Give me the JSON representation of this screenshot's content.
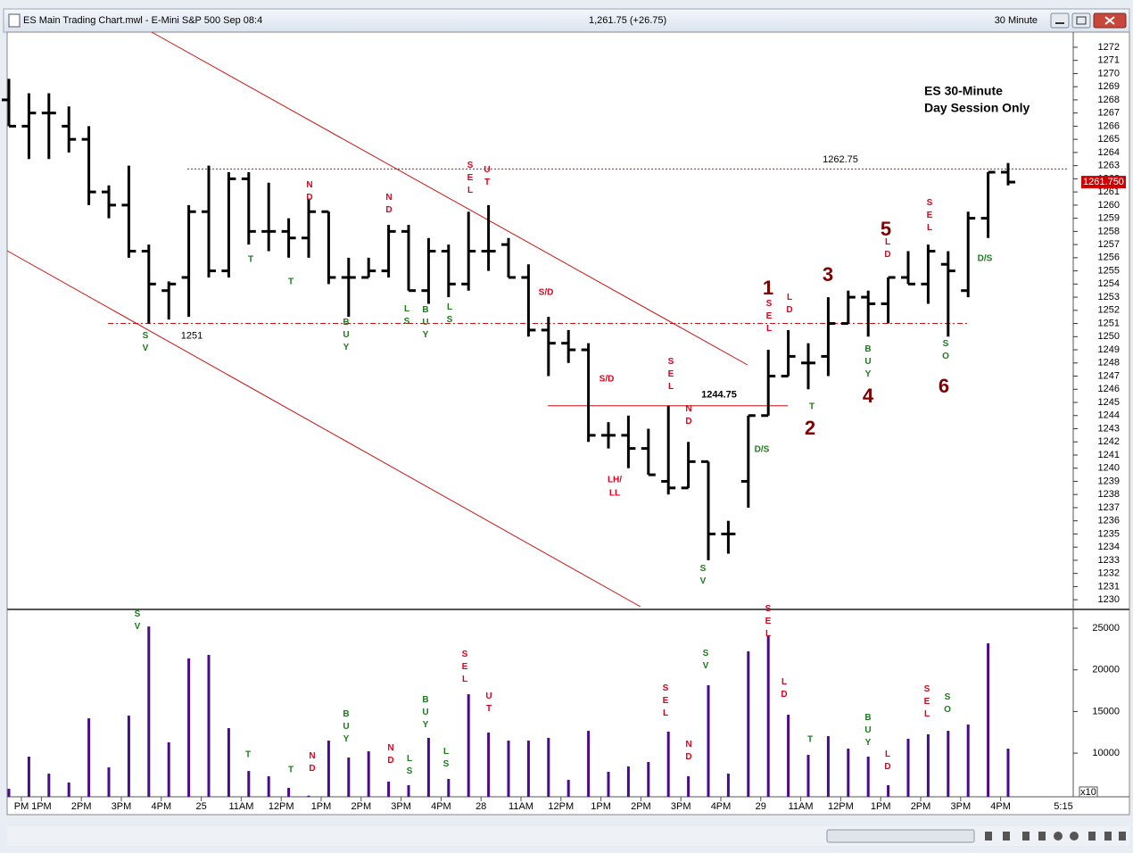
{
  "window": {
    "title": "ES Main Trading Chart.mwl - E-Mini S&P 500 Sep 08:4",
    "quote": "1,261.75 (+26.75)",
    "interval": "30 Minute"
  },
  "chart_data": [
    {
      "type": "ohlc",
      "color": "#000000",
      "open": [
        1268,
        1266,
        1267,
        1266,
        1265,
        1261,
        1260,
        1256.5,
        1253.5,
        1254.5,
        1259.5,
        1255,
        1262,
        1258,
        1258,
        1257.5,
        1259.5,
        1254.5,
        1254.5,
        1255,
        1258,
        1253.5,
        1256.5,
        1254,
        1256.5,
        1257,
        1254.5,
        1250.5,
        1249.5,
        1249,
        1242.5,
        1242.5,
        1241.5,
        1239,
        1238.5,
        1240.5,
        1235,
        1239,
        1244,
        1247,
        1248,
        1248.5,
        1251,
        1253,
        1252.5,
        1254.5,
        1254,
        1255.5,
        1253.5,
        1259,
        1262.5
      ],
      "high": [
        1269.6,
        1268.5,
        1268.5,
        1267.5,
        1266,
        1261.5,
        1263,
        1257,
        1254.2,
        1260,
        1263,
        1262.5,
        1262.5,
        1261.7,
        1259,
        1260.5,
        1259.5,
        1256,
        1256,
        1258.5,
        1258.5,
        1257.5,
        1257,
        1259.5,
        1260,
        1257.5,
        1255.5,
        1251.5,
        1250.5,
        1249.5,
        1243.5,
        1244,
        1243,
        1244.75,
        1242,
        1240.5,
        1236,
        1244,
        1249,
        1250.5,
        1249.5,
        1253,
        1253.5,
        1253.5,
        1254.5,
        1256.5,
        1257,
        1256.5,
        1259.5,
        1262.5,
        1263.2
      ],
      "low": [
        1266,
        1263.5,
        1263.5,
        1264,
        1260,
        1259,
        1256,
        1251,
        1251.3,
        1251.5,
        1254.5,
        1254.5,
        1257,
        1256.5,
        1256,
        1256,
        1254,
        1251.5,
        1254.5,
        1254.5,
        1253.5,
        1252.5,
        1253,
        1253.5,
        1255,
        1254.5,
        1250,
        1247,
        1248,
        1242,
        1241.5,
        1240,
        1239.5,
        1238,
        1238.5,
        1233,
        1233.5,
        1237,
        1244,
        1247,
        1246,
        1247,
        1251,
        1250,
        1251,
        1254,
        1252.5,
        1250,
        1253,
        1257.5,
        1261.5
      ],
      "close": [
        1266,
        1267,
        1267,
        1265,
        1261,
        1260,
        1256.5,
        1254,
        1254,
        1259.5,
        1255,
        1262,
        1258,
        1258,
        1257.5,
        1259.5,
        1254.5,
        1254.5,
        1255,
        1258,
        1253.5,
        1256.5,
        1254,
        1256.5,
        1256.5,
        1254.5,
        1250.5,
        1249.5,
        1249,
        1242.5,
        1242.5,
        1241.5,
        1239.5,
        1238.5,
        1240.5,
        1235,
        1235,
        1244,
        1247,
        1248.5,
        1248,
        1251,
        1253,
        1252.5,
        1254.5,
        1254,
        1256.5,
        1255,
        1259,
        1262.5,
        1261.75
      ],
      "ylim": [
        1229.4,
        1273.15
      ],
      "yticks": [
        1230,
        1231,
        1232,
        1233,
        1234,
        1235,
        1236,
        1237,
        1238,
        1239,
        1240,
        1241,
        1242,
        1243,
        1244,
        1245,
        1246,
        1247,
        1248,
        1249,
        1250,
        1251,
        1252,
        1253,
        1254,
        1255,
        1256,
        1257,
        1258,
        1259,
        1260,
        1261,
        1262,
        1263,
        1264,
        1265,
        1266,
        1267,
        1268,
        1269,
        1270,
        1271,
        1272
      ],
      "levels": [
        1262.75,
        1251,
        1244.75
      ],
      "last_price": {
        "value": 1261.75,
        "label": "1261.750"
      },
      "annotations": [
        {
          "text": "SV",
          "color": "#1b7a1b"
        },
        {
          "text": "T",
          "color": "#1b7a1b"
        },
        {
          "text": "T",
          "color": "#1b7a1b"
        },
        {
          "text": "ND",
          "color": "#e0001b"
        },
        {
          "text": "BUY",
          "color": "#1b7a1b"
        },
        {
          "text": "ND",
          "color": "#e0001b"
        },
        {
          "text": "LS",
          "color": "#1b7a1b"
        },
        {
          "text": "BUY",
          "color": "#1b7a1b"
        },
        {
          "text": "LS",
          "color": "#1b7a1b"
        },
        {
          "text": "SEL",
          "color": "#e0001b"
        },
        {
          "text": "UT",
          "color": "#e0001b"
        },
        {
          "text": "S/D",
          "color": "#e0001b"
        },
        {
          "text": "S/D",
          "color": "#e0001b"
        },
        {
          "text": "LH/",
          "color": "#e0001b"
        },
        {
          "text": "LL",
          "color": "#e0001b"
        },
        {
          "text": "SEL",
          "color": "#e0001b"
        },
        {
          "text": "ND",
          "color": "#e0001b"
        },
        {
          "text": "SV",
          "color": "#1b7a1b"
        },
        {
          "text": "D/S",
          "color": "#1b7a1b"
        },
        {
          "text": "1",
          "color": "#800000"
        },
        {
          "text": "SEL",
          "color": "#e0001b"
        },
        {
          "text": "LD",
          "color": "#e0001b"
        },
        {
          "text": "2",
          "color": "#800000"
        },
        {
          "text": "T",
          "color": "#1b7a1b"
        },
        {
          "text": "3",
          "color": "#800000"
        },
        {
          "text": "BUY",
          "color": "#1b7a1b"
        },
        {
          "text": "4",
          "color": "#800000"
        },
        {
          "text": "5",
          "color": "#800000"
        },
        {
          "text": "LD",
          "color": "#e0001b"
        },
        {
          "text": "SEL",
          "color": "#e0001b"
        },
        {
          "text": "SO",
          "color": "#1b7a1b"
        },
        {
          "text": "6",
          "color": "#800000"
        },
        {
          "text": "D/S",
          "color": "#1b7a1b"
        },
        {
          "text": "ES 30-Minute",
          "color": "#000000"
        },
        {
          "text": "Day Session Only",
          "color": "#000000"
        }
      ]
    },
    {
      "type": "bar",
      "color": "#4a0a8a",
      "categories": [
        "PM",
        "1PM",
        null,
        "2PM",
        null,
        "3PM",
        null,
        "4PM",
        null,
        "25",
        null,
        "11AM",
        null,
        "12PM",
        null,
        "1PM",
        null,
        "2PM",
        null,
        "3PM",
        null,
        "4PM",
        null,
        "28",
        null,
        "11AM",
        null,
        "12PM",
        null,
        "1PM",
        null,
        "2PM",
        null,
        "3PM",
        null,
        "4PM",
        null,
        "29",
        null,
        "11AM",
        null,
        "12PM",
        null,
        "1PM",
        null,
        "2PM",
        null,
        "3PM",
        null,
        "4PM",
        null
      ],
      "x_end_label": "5:15",
      "values": [
        5720,
        9580,
        7540,
        6470,
        14180,
        8290,
        14500,
        25200,
        11300,
        21360,
        21790,
        13000,
        7860,
        7220,
        5830,
        4900,
        11500,
        9470,
        10220,
        6580,
        6150,
        11830,
        6900,
        17070,
        12470,
        11500,
        11500,
        11830,
        6790,
        12680,
        7760,
        8400,
        8940,
        12580,
        7220,
        18150,
        7540,
        22220,
        24140,
        14610,
        9790,
        12040,
        10540,
        9580,
        6150,
        11720,
        12260,
        12680,
        13430,
        23180,
        10540
      ],
      "ylim": [
        4760,
        26930
      ],
      "yticks": [
        10000,
        15000,
        20000,
        25000
      ],
      "scale_label": "x10",
      "annotations": [
        {
          "text": "SV",
          "color": "#1b7a1b"
        },
        {
          "text": "T",
          "color": "#1b7a1b"
        },
        {
          "text": "T",
          "color": "#1b7a1b"
        },
        {
          "text": "ND",
          "color": "#e0001b"
        },
        {
          "text": "BUY",
          "color": "#1b7a1b"
        },
        {
          "text": "ND",
          "color": "#e0001b"
        },
        {
          "text": "LS",
          "color": "#1b7a1b"
        },
        {
          "text": "BUY",
          "color": "#1b7a1b"
        },
        {
          "text": "LS",
          "color": "#1b7a1b"
        },
        {
          "text": "SEL",
          "color": "#e0001b"
        },
        {
          "text": "UT",
          "color": "#e0001b"
        },
        {
          "text": "SEL",
          "color": "#e0001b"
        },
        {
          "text": "ND",
          "color": "#e0001b"
        },
        {
          "text": "SV",
          "color": "#1b7a1b"
        },
        {
          "text": "SEL",
          "color": "#e0001b"
        },
        {
          "text": "LD",
          "color": "#e0001b"
        },
        {
          "text": "T",
          "color": "#1b7a1b"
        },
        {
          "text": "BUY",
          "color": "#1b7a1b"
        },
        {
          "text": "LD",
          "color": "#e0001b"
        },
        {
          "text": "SEL",
          "color": "#e0001b"
        },
        {
          "text": "SO",
          "color": "#1b7a1b"
        }
      ]
    }
  ]
}
